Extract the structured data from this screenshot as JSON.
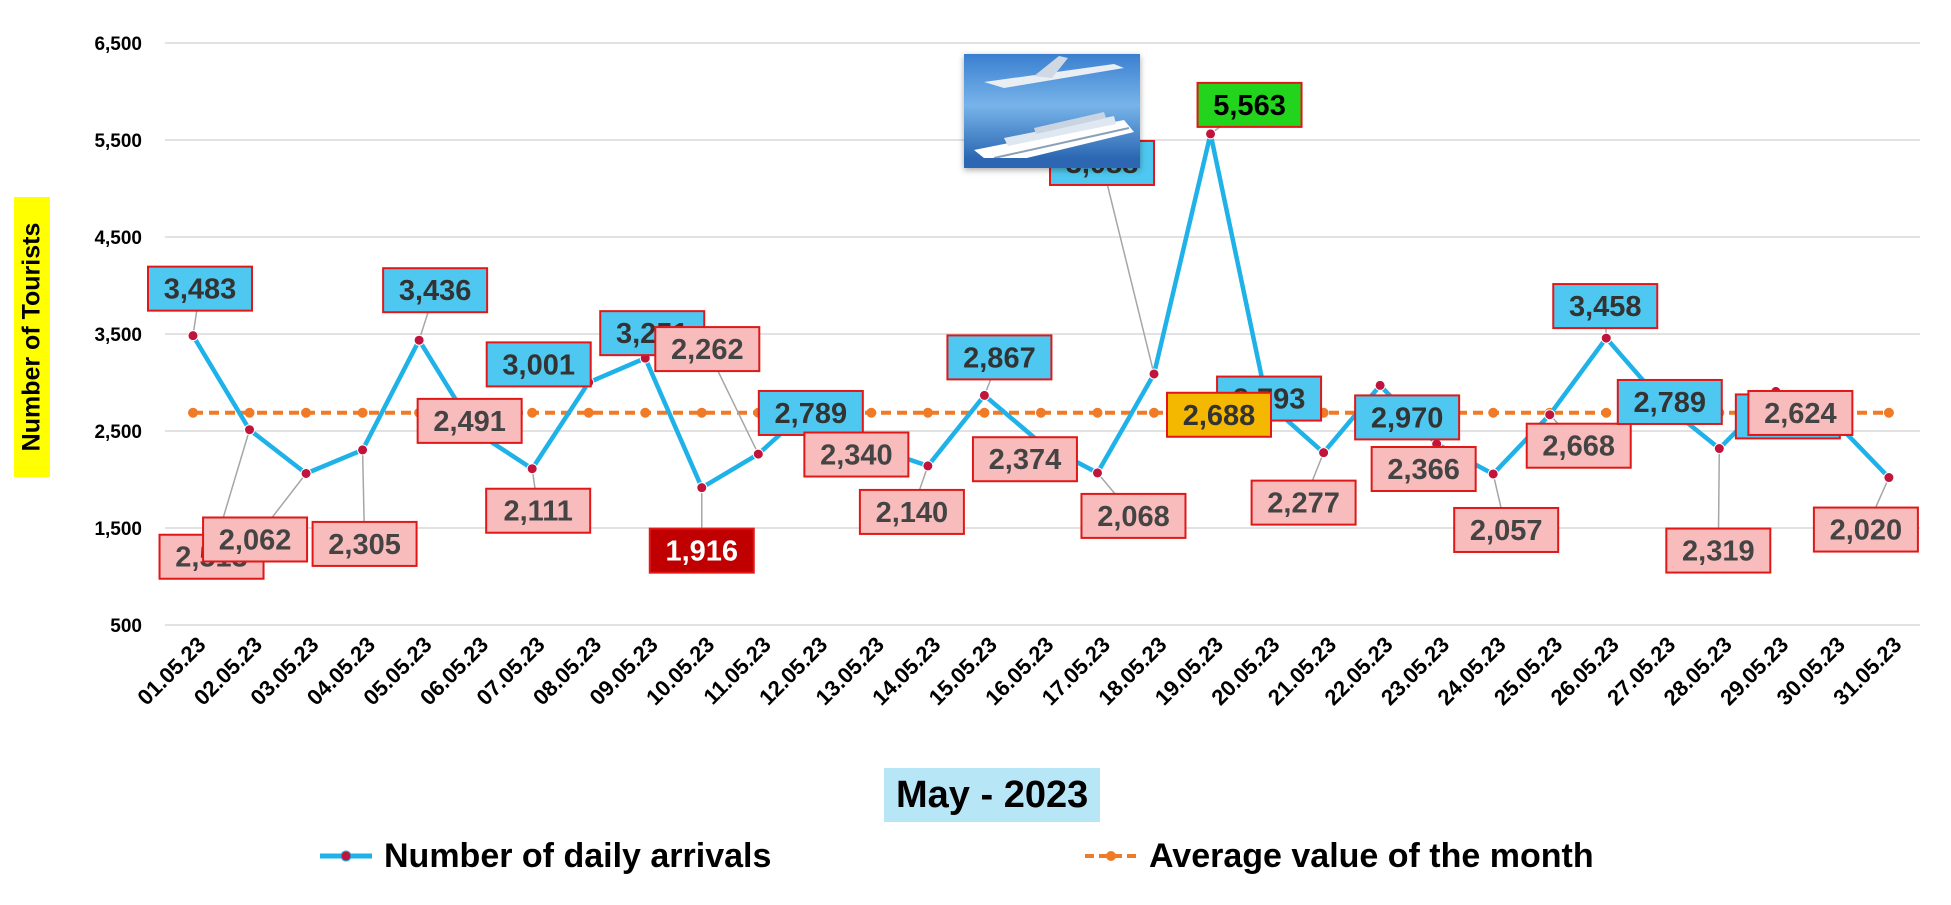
{
  "chart_data": {
    "type": "line",
    "xlabel": "May - 2023",
    "ylabel": "Number of Tourists",
    "ylim": [
      500,
      6500
    ],
    "yticks": [
      "6,500",
      "5,500",
      "4,500",
      "3,500",
      "2,500",
      "1,500",
      "500"
    ],
    "ytick_values": [
      6500,
      5500,
      4500,
      3500,
      2500,
      1500,
      500
    ],
    "grid": true,
    "legend_position": "bottom",
    "categories": [
      "01.05.23",
      "02.05.23",
      "03.05.23",
      "04.05.23",
      "05.05.23",
      "06.05.23",
      "07.05.23",
      "08.05.23",
      "09.05.23",
      "10.05.23",
      "11.05.23",
      "12.05.23",
      "13.05.23",
      "14.05.23",
      "15.05.23",
      "16.05.23",
      "17.05.23",
      "18.05.23",
      "19.05.23",
      "20.05.23",
      "21.05.23",
      "22.05.23",
      "23.05.23",
      "24.05.23",
      "25.05.23",
      "26.05.23",
      "27.05.23",
      "28.05.23",
      "29.05.23",
      "30.05.23",
      "31.05.23"
    ],
    "series": [
      {
        "name": "Number of daily arrivals",
        "color": "#1fb2e8",
        "marker_color": "#c0143c",
        "values": [
          3483,
          2513,
          2062,
          2305,
          3436,
          2491,
          2111,
          3001,
          3251,
          1916,
          2262,
          2789,
          2340,
          2140,
          2867,
          2374,
          2068,
          3088,
          5563,
          2793,
          2277,
          2970,
          2366,
          2057,
          2668,
          3458,
          2789,
          2319,
          2908,
          2624,
          2020
        ],
        "labels": [
          "3,483",
          "2,513",
          "2,062",
          "2,305",
          "3,436",
          "2,491",
          "2,111",
          "3,001",
          "3,251",
          "1,916",
          "2,262",
          "2,789",
          "2,340",
          "2,140",
          "2,867",
          "2,374",
          "2,068",
          "3,088",
          "5,563",
          "2,793",
          "2,277",
          "2,970",
          "2,366",
          "2,057",
          "2,668",
          "3,458",
          "2,789",
          "2,319",
          "2,908",
          "2,624",
          "2,020"
        ]
      },
      {
        "name": "Average value of the month",
        "color": "#f07a26",
        "value": 2688,
        "label": "2,688"
      }
    ],
    "label_colors": {
      "high": "#4ec8f0",
      "low": "#f9bcbc",
      "max": "#22d51c",
      "min": "#c00000",
      "average": "#f5b800",
      "border": "#e01818"
    }
  }
}
